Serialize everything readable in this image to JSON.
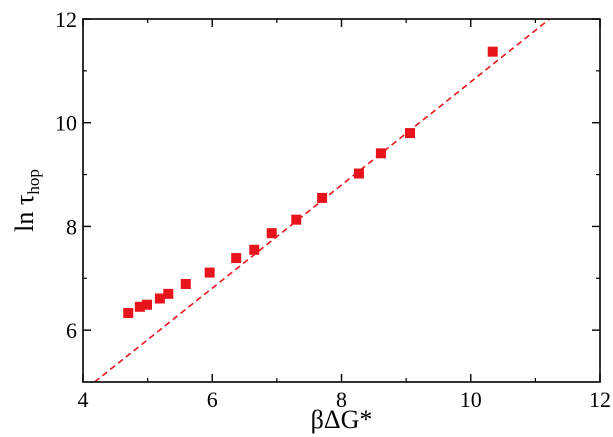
{
  "chart_data": {
    "type": "scatter",
    "xlabel": "βΔG*",
    "ylabel": {
      "main": "ln τ",
      "sub": "hop"
    },
    "xlim": [
      4,
      12
    ],
    "ylim": [
      5,
      12
    ],
    "x_ticks": [
      4,
      6,
      8,
      10,
      12
    ],
    "y_ticks": [
      6,
      8,
      10,
      12
    ],
    "grid": false,
    "series": [
      {
        "kind": "points",
        "marker": "square",
        "color": "#e8141c",
        "x": [
          4.7,
          4.88,
          4.99,
          5.19,
          5.32,
          5.59,
          5.96,
          6.37,
          6.65,
          6.92,
          7.3,
          7.7,
          8.27,
          8.61,
          9.06,
          10.34
        ],
        "y": [
          6.33,
          6.45,
          6.49,
          6.61,
          6.7,
          6.89,
          7.11,
          7.39,
          7.55,
          7.87,
          8.13,
          8.55,
          9.02,
          9.41,
          9.8,
          11.37
        ]
      },
      {
        "kind": "fit-line",
        "style": "dashed",
        "color": "#e8141c",
        "x": [
          4.18,
          11.22
        ],
        "y": [
          5.0,
          12.0
        ]
      }
    ]
  }
}
